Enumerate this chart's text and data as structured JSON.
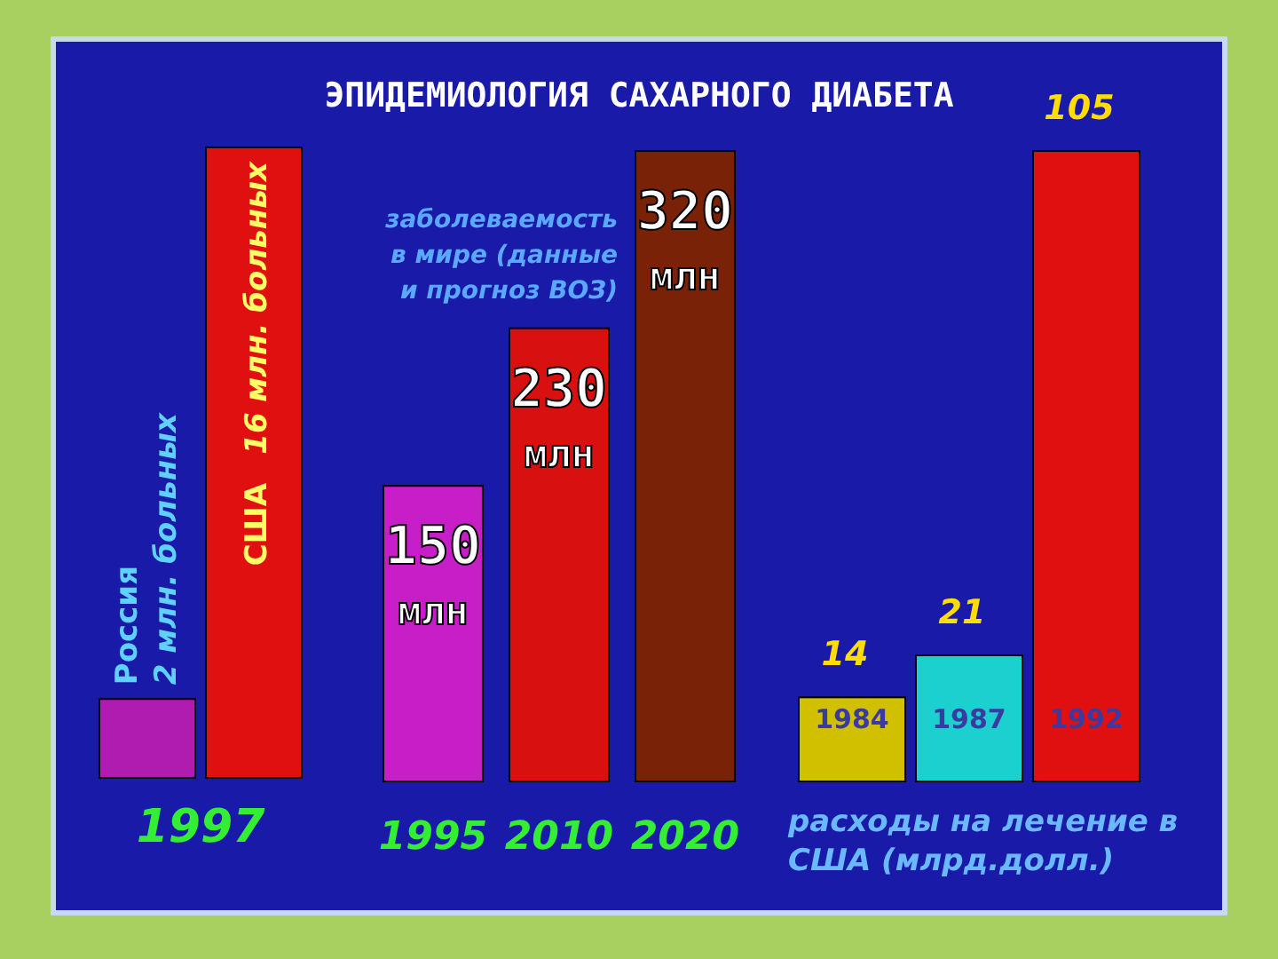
{
  "chart_data": [
    {
      "type": "bar",
      "xlabel": "1997",
      "categories": [
        "Россия",
        "США"
      ],
      "values": [
        2,
        16
      ],
      "colors": [
        "#b01cb0",
        "#e01010"
      ],
      "value_labels": [
        "2 млн. больных",
        "16 млн. больных"
      ]
    },
    {
      "type": "bar",
      "title": "ЭПИДЕМИОЛОГИЯ САХАРНОГО ДИАБЕТА",
      "categories": [
        "1995",
        "2010",
        "2020"
      ],
      "values": [
        150,
        230,
        320
      ],
      "colors": [
        "#c81ec8",
        "#d81010",
        "#7a2208"
      ],
      "value_labels": [
        "150 млн",
        "230 млн",
        "320 млн"
      ],
      "annotations": [
        "заболеваемость в мире (данные и прогноз ВОЗ)"
      ]
    },
    {
      "type": "bar",
      "xlabel": "расходы на лечение в США (млрд.долл.)",
      "categories": [
        "1984",
        "1987",
        "1992"
      ],
      "values": [
        14,
        21,
        105
      ],
      "colors": [
        "#d0c000",
        "#1cd0d0",
        "#e01010"
      ],
      "data_labels": true
    }
  ]
}
